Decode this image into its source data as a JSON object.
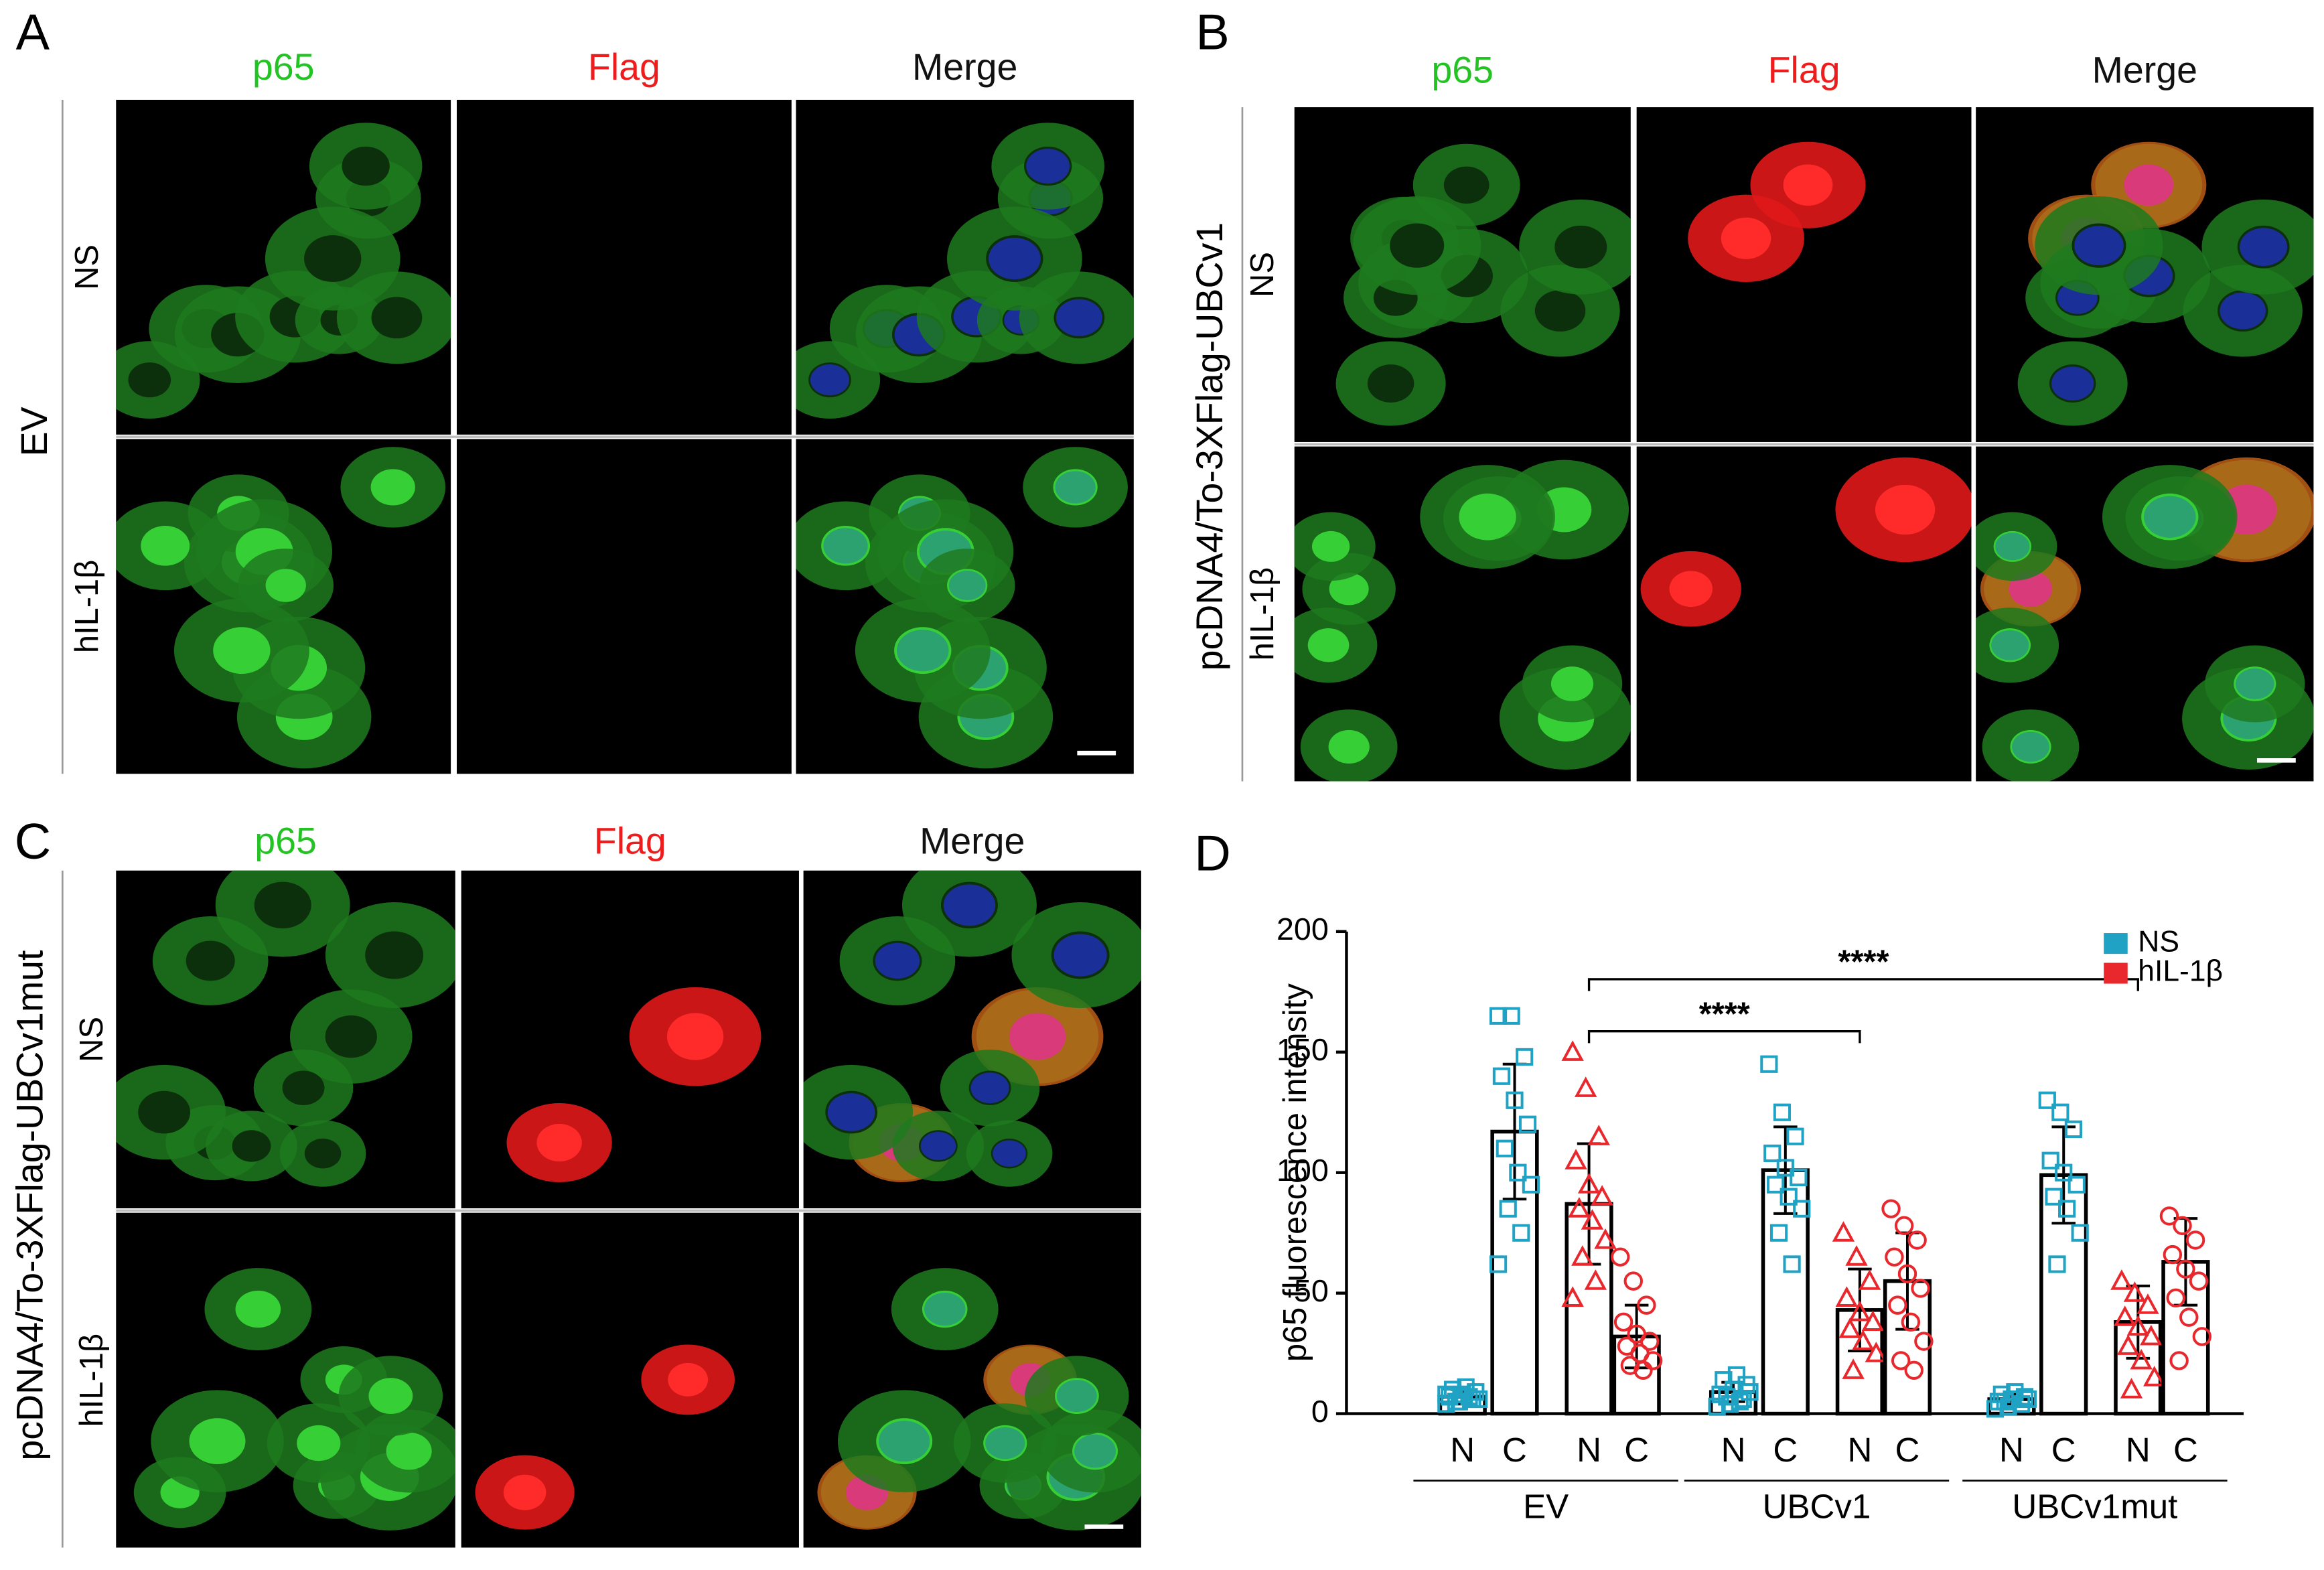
{
  "panels": [
    {
      "letter": "A",
      "columns": [
        "p65",
        "Flag",
        "Merge"
      ],
      "group": "EV",
      "rows": [
        "NS",
        "hIL-1β"
      ]
    },
    {
      "letter": "B",
      "columns": [
        "p65",
        "Flag",
        "Merge"
      ],
      "group": "pcDNA4/To-3XFlag-UBCv1",
      "rows": [
        "NS",
        "hIL-1β"
      ]
    },
    {
      "letter": "C",
      "columns": [
        "p65",
        "Flag",
        "Merge"
      ],
      "group": "pcDNA4/To-3XFlag-UBCv1mut",
      "rows": [
        "NS",
        "hIL-1β"
      ]
    }
  ],
  "chart_data": {
    "type": "bar",
    "panel": "D",
    "ylabel": "p65 fluorescence intensity",
    "ylim": [
      0,
      200
    ],
    "yticks": [
      0,
      50,
      100,
      150,
      200
    ],
    "categories": [
      "N",
      "C",
      "N",
      "C",
      "N",
      "C",
      "N",
      "C",
      "N",
      "C",
      "N",
      "C"
    ],
    "groups": [
      "EV",
      "UBCv1",
      "UBCv1mut"
    ],
    "annotations": [
      "****",
      "****"
    ],
    "series": [
      {
        "name": "NS",
        "color": "#1fa2c4",
        "marker": "square",
        "values": [
          7,
          117,
          null,
          null,
          9,
          101,
          null,
          null,
          6,
          99,
          null,
          null
        ],
        "errors": [
          3,
          28,
          null,
          null,
          4,
          18,
          null,
          null,
          2,
          20,
          null,
          null
        ],
        "points": [
          [
            4,
            5,
            6,
            7,
            8,
            9,
            10,
            11,
            6,
            5,
            7,
            8
          ],
          [
            165,
            165,
            148,
            140,
            130,
            120,
            110,
            100,
            95,
            85,
            75,
            62
          ],
          null,
          null,
          [
            3,
            4,
            6,
            8,
            10,
            12,
            14,
            16,
            9,
            7,
            5
          ],
          [
            145,
            125,
            115,
            108,
            102,
            98,
            95,
            90,
            85,
            75,
            62
          ],
          null,
          null,
          [
            2,
            3,
            4,
            5,
            6,
            7,
            8,
            9,
            6,
            5
          ],
          [
            130,
            125,
            118,
            105,
            100,
            95,
            90,
            85,
            75,
            62
          ],
          null,
          null
        ]
      },
      {
        "name": "hIL-1β",
        "color": "#e8282c",
        "marker": [
          "triangle",
          "circle"
        ],
        "values": [
          null,
          null,
          87,
          32,
          null,
          null,
          43,
          55,
          null,
          null,
          38,
          63
        ],
        "errors": [
          null,
          null,
          25,
          13,
          null,
          null,
          17,
          20,
          null,
          null,
          15,
          18
        ],
        "points": [
          null,
          null,
          [
            150,
            135,
            115,
            105,
            95,
            90,
            85,
            80,
            72,
            65,
            55,
            48
          ],
          [
            65,
            55,
            45,
            38,
            33,
            30,
            28,
            25,
            22,
            20,
            18
          ],
          null,
          null,
          [
            75,
            65,
            55,
            48,
            42,
            38,
            35,
            30,
            25,
            18
          ],
          [
            85,
            78,
            72,
            65,
            58,
            52,
            45,
            38,
            30,
            22,
            18
          ],
          null,
          null,
          [
            55,
            50,
            45,
            40,
            36,
            32,
            28,
            22,
            15,
            10
          ],
          [
            82,
            78,
            72,
            66,
            60,
            55,
            48,
            40,
            32,
            22
          ]
        ]
      }
    ]
  }
}
